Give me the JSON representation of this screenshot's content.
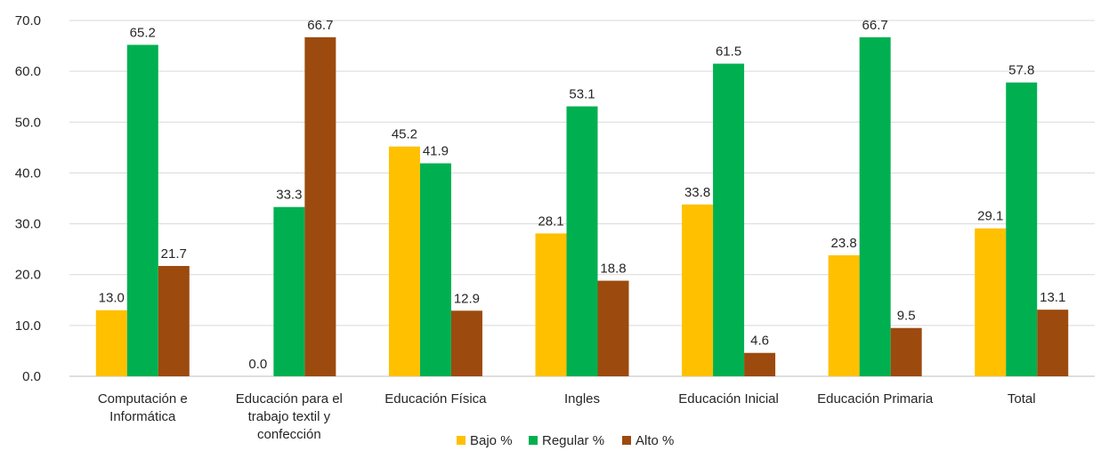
{
  "chart_data": {
    "type": "bar",
    "title": "",
    "xlabel": "",
    "ylabel": "",
    "ylim": [
      0,
      70
    ],
    "y_ticks": [
      "0.0",
      "10.0",
      "20.0",
      "30.0",
      "40.0",
      "50.0",
      "60.0",
      "70.0"
    ],
    "grid": true,
    "legend_position": "bottom",
    "categories": [
      [
        "Computación e",
        "Informática"
      ],
      [
        "Educación para el",
        "trabajo textil y",
        "confección"
      ],
      [
        "Educación Física"
      ],
      [
        "Ingles"
      ],
      [
        "Educación Inicial"
      ],
      [
        "Educación Primaria"
      ],
      [
        "Total"
      ]
    ],
    "series": [
      {
        "name": "Bajo %",
        "color": "#FFC000",
        "values": [
          13.0,
          0.0,
          45.2,
          28.1,
          33.8,
          23.8,
          29.1
        ],
        "labels": [
          "13.0",
          "0.0",
          "45.2",
          "28.1",
          "33.8",
          "23.8",
          "29.1"
        ]
      },
      {
        "name": "Regular %",
        "color": "#00B050",
        "values": [
          65.2,
          33.3,
          41.9,
          53.1,
          61.5,
          66.7,
          57.8
        ],
        "labels": [
          "65.2",
          "33.3",
          "41.9",
          "53.1",
          "61.5",
          "66.7",
          "57.8"
        ]
      },
      {
        "name": "Alto %",
        "color": "#9C4A0E",
        "values": [
          21.7,
          66.7,
          12.9,
          18.8,
          4.6,
          9.5,
          13.1
        ],
        "labels": [
          "21.7",
          "66.7",
          "12.9",
          "18.8",
          "4.6",
          "9.5",
          "13.1"
        ]
      }
    ]
  }
}
